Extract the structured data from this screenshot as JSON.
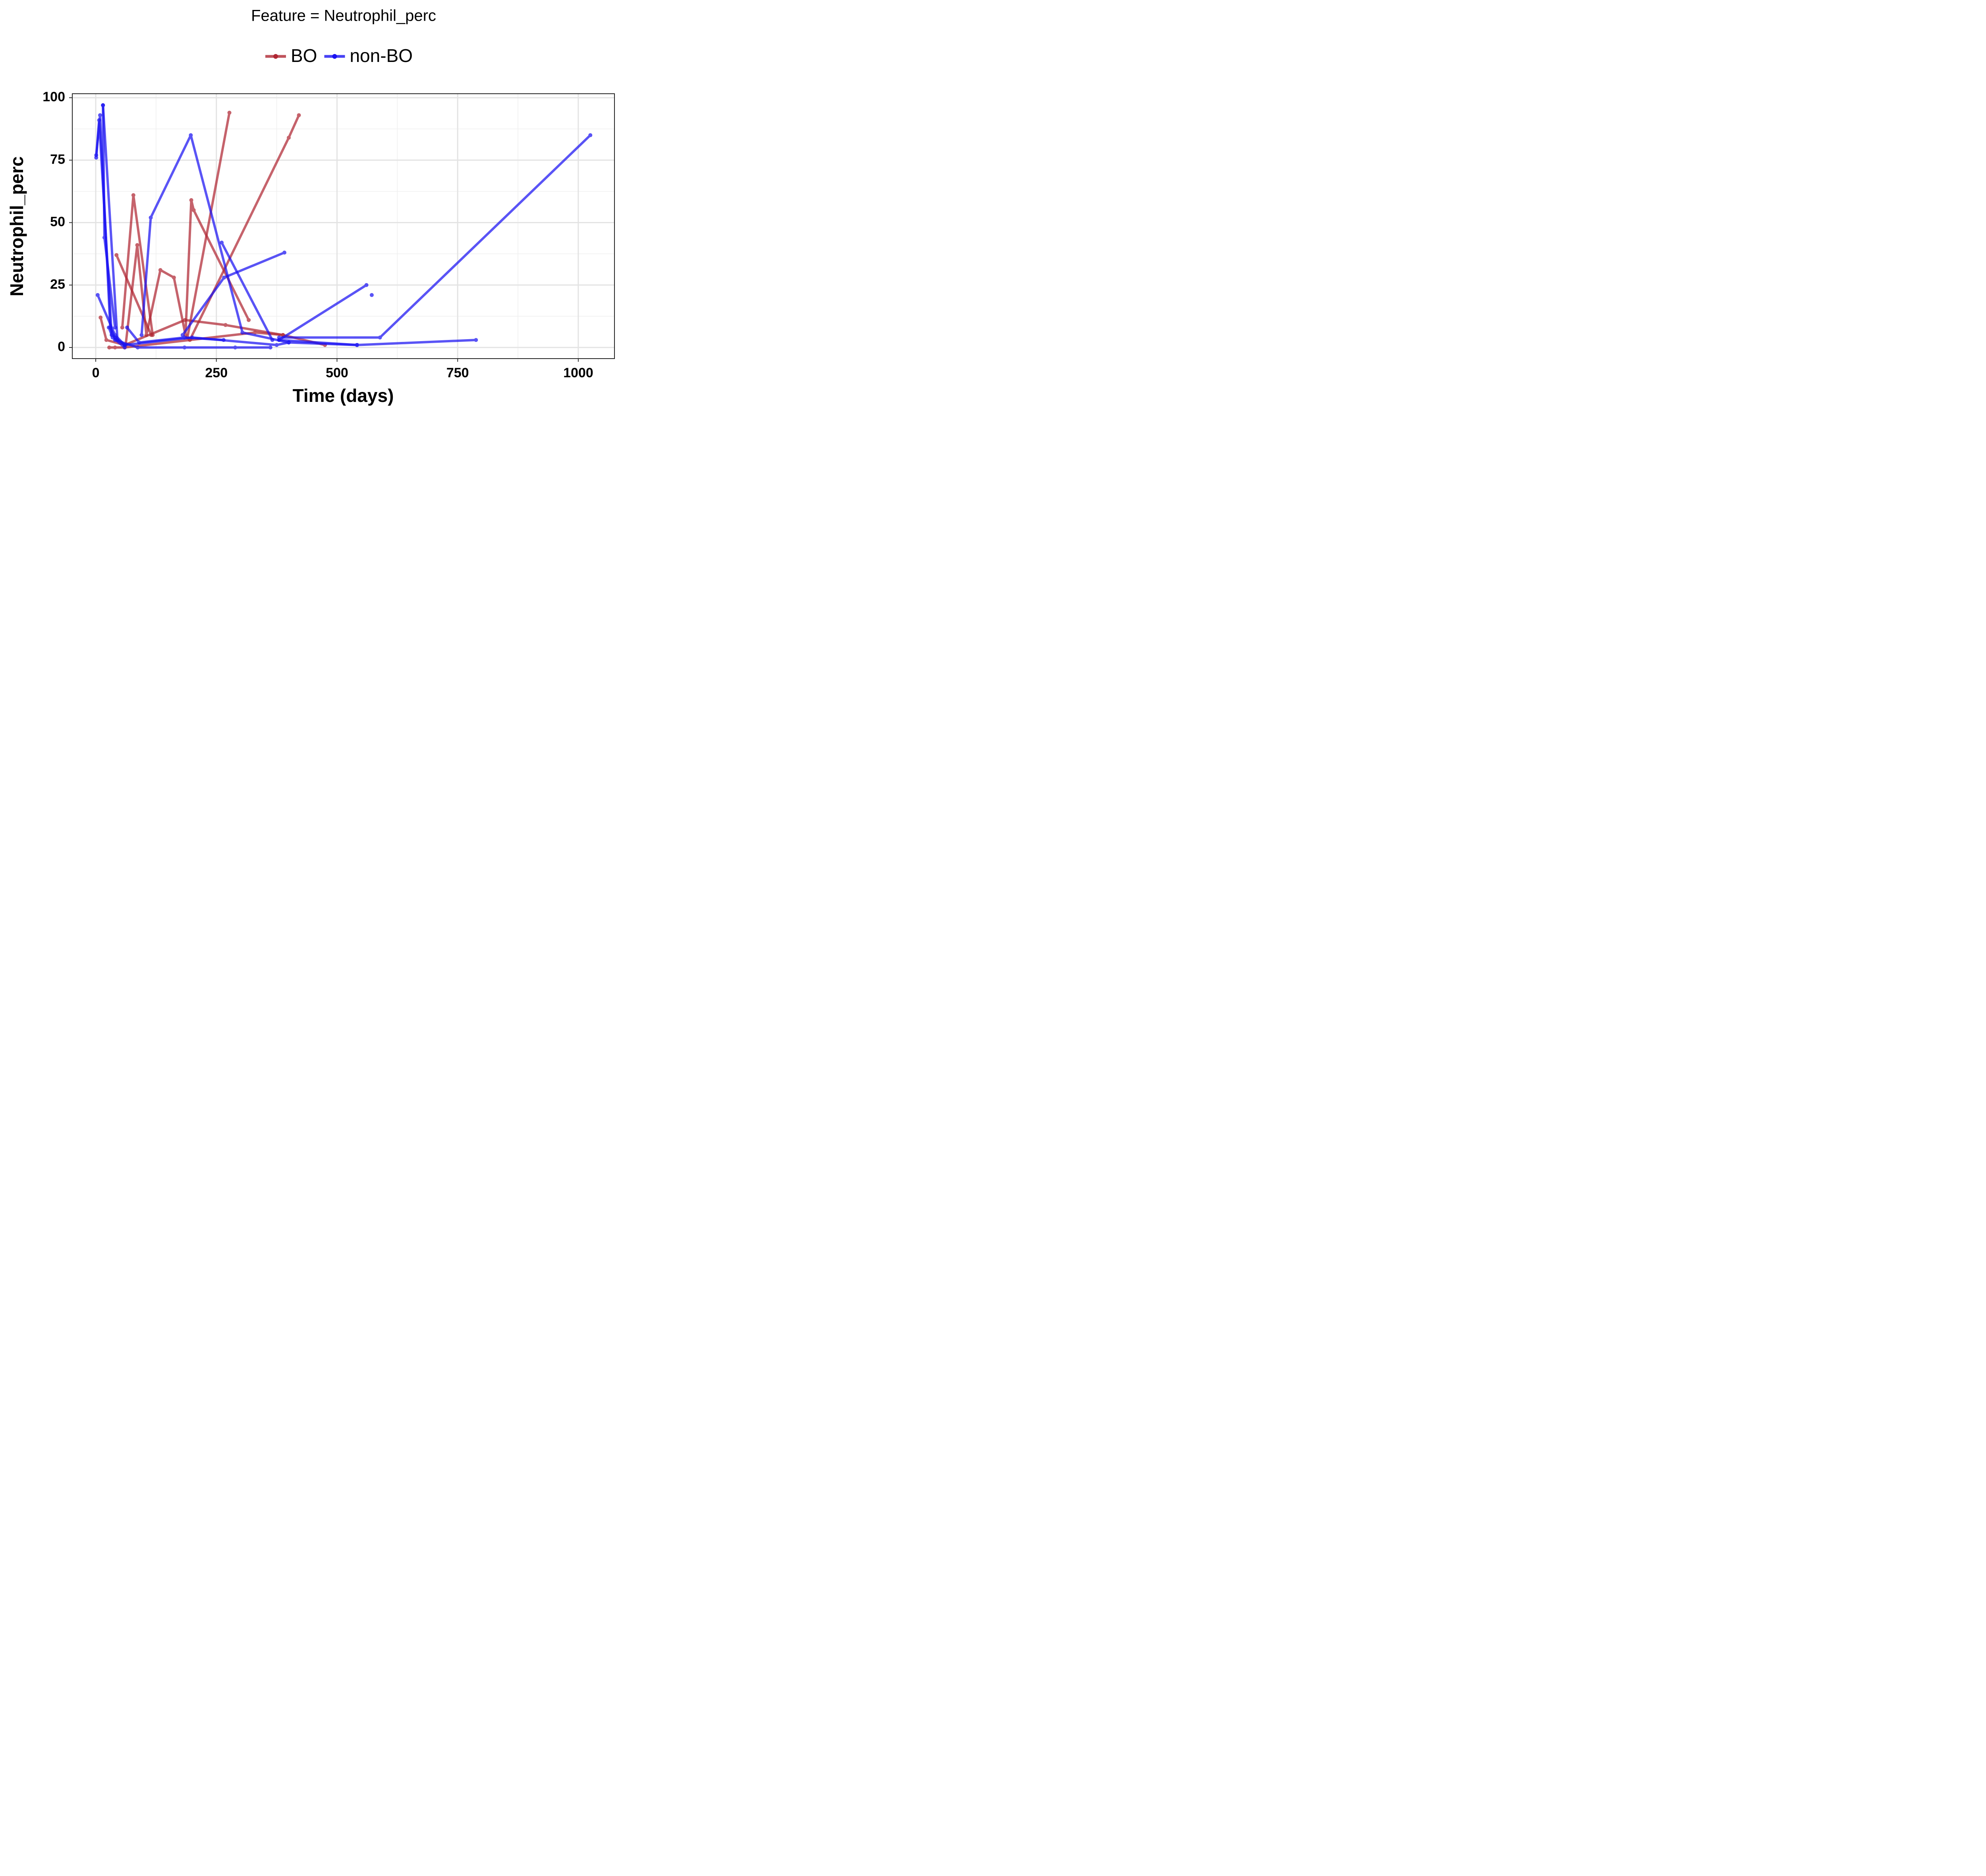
{
  "chart_data": {
    "type": "line",
    "title": "Feature = Neutrophil_perc",
    "x_label": "Time (days)",
    "y_label": "Neutrophil_perc",
    "xlim": [
      -48.6,
      1075
    ],
    "ylim": [
      -4.45,
      101.6
    ],
    "xticks": [
      0,
      250,
      500,
      750,
      1000
    ],
    "yticks": [
      0,
      25,
      50,
      75,
      100
    ],
    "grid": true,
    "legend": "top",
    "series": [
      {
        "name": "BO",
        "color": "#b02733",
        "lines": [
          {
            "x": [
              10,
              22,
              60,
              185,
              269,
              388
            ],
            "y": [
              12,
              3,
              1,
              11,
              9,
              5
            ]
          },
          {
            "x": [
              28,
              40,
              60,
              330,
              388,
              475
            ],
            "y": [
              0,
              0,
              0,
              6,
              5,
              1
            ]
          },
          {
            "x": [
              43,
              115
            ],
            "y": [
              37,
              5
            ]
          },
          {
            "x": [
              55,
              78,
              118
            ],
            "y": [
              8,
              61,
              5
            ]
          },
          {
            "x": [
              62,
              86,
              105,
              134,
              162,
              186,
              198,
              203,
              317
            ],
            "y": [
              1,
              41,
              5,
              31,
              28,
              5,
              59,
              55,
              11
            ]
          },
          {
            "x": [
              190,
              277
            ],
            "y": [
              4,
              94
            ]
          },
          {
            "x": [
              195,
              400,
              421
            ],
            "y": [
              3,
              84,
              93
            ]
          }
        ]
      },
      {
        "name": "non-BO",
        "color": "#1a12f2",
        "lines": [
          {
            "x": [
              1,
              9,
              30,
              40
            ],
            "y": [
              77,
              93,
              8,
              4
            ]
          },
          {
            "x": [
              1,
              7,
              33,
              60
            ],
            "y": [
              76,
              91,
              5,
              1
            ]
          },
          {
            "x": [
              15,
              18,
              40
            ],
            "y": [
              97,
              44,
              8
            ]
          },
          {
            "x": [
              15,
              45
            ],
            "y": [
              97,
              3
            ]
          },
          {
            "x": [
              4,
              40,
              60
            ],
            "y": [
              21,
              5,
              1
            ]
          },
          {
            "x": [
              27,
              35,
              60
            ],
            "y": [
              8,
              4,
              0
            ]
          },
          {
            "x": [
              95,
              114,
              197,
              304,
              400
            ],
            "y": [
              5,
              52,
              85,
              6,
              2
            ]
          },
          {
            "x": [
              261,
              366
            ],
            "y": [
              42,
              3
            ]
          },
          {
            "x": [
              180,
              266,
              391
            ],
            "y": [
              5,
              28,
              38
            ]
          },
          {
            "x": [
              380,
              561
            ],
            "y": [
              3,
              25
            ]
          },
          {
            "x": [
              380,
              589,
              1025
            ],
            "y": [
              4,
              4,
              85
            ]
          },
          {
            "x": [
              380,
              542,
              788
            ],
            "y": [
              3,
              1,
              3
            ]
          },
          {
            "x": [
              40,
              87,
              184,
              289,
              362
            ],
            "y": [
              3,
              0,
              0,
              0,
              0
            ]
          },
          {
            "x": [
              65,
              90,
              184,
              265
            ],
            "y": [
              8,
              2,
              4,
              3
            ]
          },
          {
            "x": [
              60,
              200,
              375,
              400,
              541
            ],
            "y": [
              1,
              4,
              1,
              2,
              1
            ]
          },
          {
            "x": [
              572
            ],
            "y": [
              21
            ]
          }
        ]
      }
    ]
  }
}
